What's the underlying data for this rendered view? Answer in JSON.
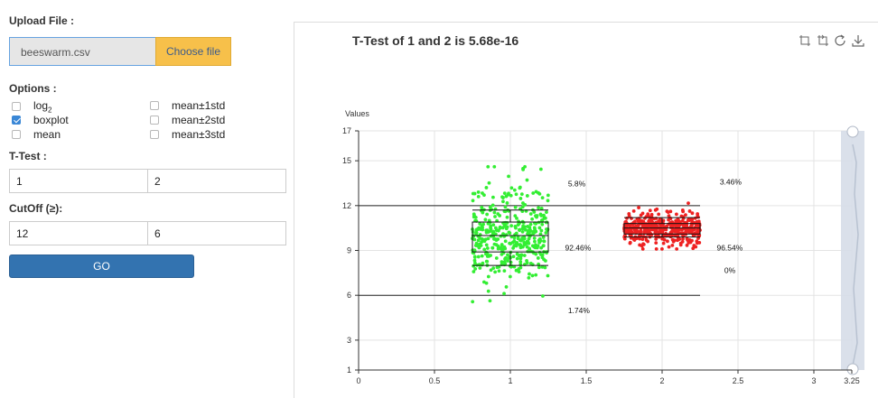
{
  "upload": {
    "label": "Upload File :",
    "file_name": "beeswarm.csv",
    "button": "Choose file"
  },
  "options": {
    "label": "Options :",
    "left": [
      {
        "label_main": "log",
        "label_sub": "2",
        "checked": false
      },
      {
        "label_main": "boxplot",
        "label_sub": "",
        "checked": true
      },
      {
        "label_main": "mean",
        "label_sub": "",
        "checked": false
      }
    ],
    "right": [
      {
        "label": "mean±1std",
        "checked": false
      },
      {
        "label": "mean±2std",
        "checked": false
      },
      {
        "label": "mean±3std",
        "checked": false
      }
    ]
  },
  "ttest": {
    "label": "T-Test :",
    "group_a": "1",
    "group_b": "2"
  },
  "cutoff": {
    "label": "CutOff (≥):",
    "value_a": "12",
    "value_b": "6"
  },
  "go_button": "GO",
  "toolbar": {
    "icons": [
      "zoom-in-icon",
      "zoom-reset-icon",
      "restore-icon",
      "download-icon"
    ]
  },
  "chart_data": {
    "type": "scatter",
    "title": "T-Test  of 1 and 2 is 5.68e-16",
    "ylabel": "Values",
    "xlabel": "",
    "xlim": [
      0,
      3.25
    ],
    "ylim": [
      1,
      17
    ],
    "x_ticks": [
      "0",
      "0.5",
      "1",
      "1.5",
      "2",
      "2.5",
      "3",
      "3.25"
    ],
    "y_ticks": [
      "1",
      "3",
      "6",
      "9",
      "12",
      "15",
      "17"
    ],
    "grid": true,
    "colors": {
      "group1": "#33ee33",
      "group2": "#ee2222"
    },
    "cutoff_lines": [
      {
        "y": 12,
        "x_from": 0,
        "x_to": 2.25
      },
      {
        "y": 6,
        "x_from": 0,
        "x_to": 2.25
      }
    ],
    "boxplots": [
      {
        "name": "1",
        "x": 1,
        "half_width": 0.25,
        "whisker_low": 8,
        "q1": 8.9,
        "median": 10,
        "q3": 10.9,
        "whisker_high": 11.7
      },
      {
        "name": "2",
        "x": 2,
        "half_width": 0.25,
        "whisker_low": 9.9,
        "q1": 10.1,
        "median": 10.5,
        "q3": 10.8,
        "whisker_high": 11.2
      }
    ],
    "group1_spread": {
      "x_from": 0.75,
      "x_to": 1.25,
      "y_from": 3.7,
      "y_to": 14.6,
      "center": 9.9
    },
    "group2_spread": {
      "x_from": 1.75,
      "x_to": 2.25,
      "y_from": 9.1,
      "y_to": 14.8,
      "center": 10.5
    },
    "annotations": [
      {
        "text": "5.8%",
        "x": 1.38,
        "y": 13.3
      },
      {
        "text": "92.46%",
        "x": 1.36,
        "y": 9
      },
      {
        "text": "1.74%",
        "x": 1.38,
        "y": 4.8
      },
      {
        "text": "3.46%",
        "x": 2.38,
        "y": 13.4
      },
      {
        "text": "96.54%",
        "x": 2.36,
        "y": 9
      },
      {
        "text": "0%",
        "x": 2.41,
        "y": 7.5
      }
    ]
  }
}
